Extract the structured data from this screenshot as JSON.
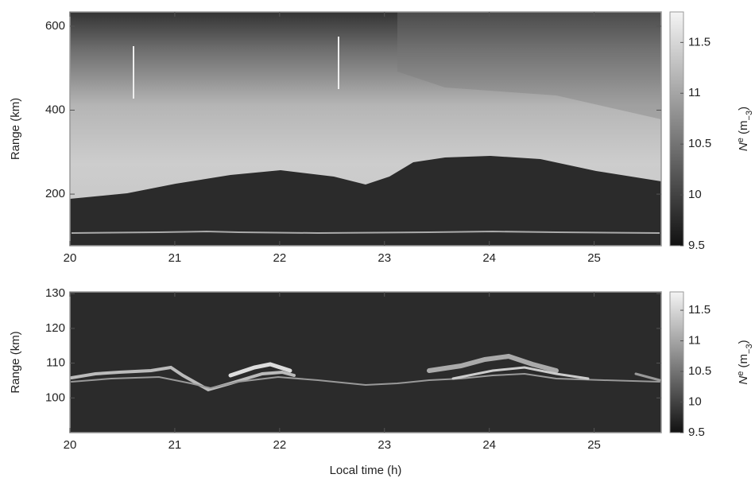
{
  "chart_data": [
    {
      "type": "heatmap",
      "ylabel": "Range (km)",
      "xlim": [
        20,
        25.64
      ],
      "xticks": [
        20,
        21,
        22,
        23,
        24,
        25
      ],
      "ylim": [
        77,
        634
      ],
      "yticks": [
        200,
        400,
        600
      ],
      "clim": [
        9.5,
        11.8
      ],
      "cticks": [
        9.5,
        10,
        10.5,
        11,
        11.5
      ],
      "colorbar_label": [
        "N",
        "e",
        " (m",
        "−3",
        ")"
      ]
    },
    {
      "type": "heatmap",
      "ylabel": "Range (km)",
      "xlabel": "Local time (h)",
      "xlim": [
        20,
        25.64
      ],
      "xticks": [
        20,
        21,
        22,
        23,
        24,
        25
      ],
      "ylim": [
        90,
        130.5
      ],
      "yticks": [
        100,
        110,
        120,
        130
      ],
      "clim": [
        9.5,
        11.8
      ],
      "cticks": [
        9.5,
        10,
        10.5,
        11,
        11.5
      ],
      "colorbar_label": [
        "N",
        "e",
        " (m",
        "−3",
        ")"
      ]
    }
  ]
}
